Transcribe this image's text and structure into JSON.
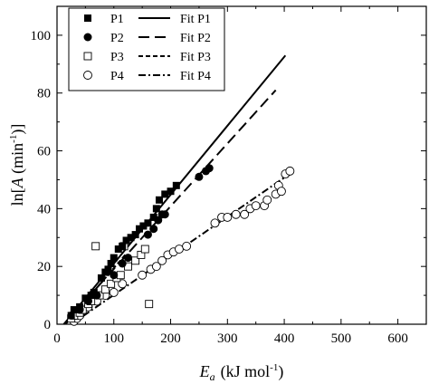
{
  "chart_data": {
    "type": "scatter",
    "xlabel": "E",
    "xlabel_sub": "a",
    "xlabel_unit": "(kJ mol",
    "xlabel_unit_sup": "-1",
    "xlabel_unit_end": ")",
    "ylabel_prefix": "ln[",
    "ylabel_var": "A",
    "ylabel_unit": " (min",
    "ylabel_unit_sup": "-1",
    "ylabel_unit_end": ")]",
    "xlim": [
      0,
      650
    ],
    "ylim": [
      0,
      110
    ],
    "xticks": [
      0,
      100,
      200,
      300,
      400,
      500,
      600
    ],
    "yticks": [
      0,
      20,
      40,
      60,
      80,
      100
    ],
    "grid": false,
    "legend": {
      "placement": "top-left",
      "entries": [
        {
          "name": "P1",
          "kind": "marker",
          "marker": "filled-square"
        },
        {
          "name": "Fit P1",
          "kind": "line",
          "dash": "solid"
        },
        {
          "name": "P2",
          "kind": "marker",
          "marker": "filled-circle"
        },
        {
          "name": "Fit P2",
          "kind": "line",
          "dash": "long-dash"
        },
        {
          "name": "P3",
          "kind": "marker",
          "marker": "open-square"
        },
        {
          "name": "Fit P3",
          "kind": "line",
          "dash": "short-dash"
        },
        {
          "name": "P4",
          "kind": "marker",
          "marker": "open-circle"
        },
        {
          "name": "Fit P4",
          "kind": "line",
          "dash": "dash-dot"
        }
      ]
    },
    "series": [
      {
        "name": "P1",
        "marker": "filled-square",
        "points": [
          [
            25,
            3
          ],
          [
            30,
            5
          ],
          [
            40,
            6
          ],
          [
            50,
            9
          ],
          [
            60,
            10
          ],
          [
            65,
            11
          ],
          [
            78,
            16
          ],
          [
            85,
            18
          ],
          [
            90,
            19
          ],
          [
            95,
            21
          ],
          [
            100,
            23
          ],
          [
            108,
            26
          ],
          [
            115,
            27
          ],
          [
            122,
            29
          ],
          [
            130,
            30
          ],
          [
            138,
            31
          ],
          [
            145,
            33
          ],
          [
            152,
            34
          ],
          [
            160,
            35
          ],
          [
            170,
            37
          ],
          [
            175,
            40
          ],
          [
            180,
            43
          ],
          [
            190,
            45
          ],
          [
            200,
            46
          ],
          [
            210,
            48
          ]
        ]
      },
      {
        "name": "P2",
        "marker": "filled-circle",
        "points": [
          [
            40,
            5
          ],
          [
            55,
            8
          ],
          [
            70,
            10
          ],
          [
            100,
            17
          ],
          [
            115,
            21
          ],
          [
            125,
            23
          ],
          [
            160,
            31
          ],
          [
            170,
            33
          ],
          [
            178,
            36
          ],
          [
            185,
            38
          ],
          [
            190,
            38
          ],
          [
            250,
            51
          ],
          [
            262,
            53
          ],
          [
            268,
            54
          ]
        ]
      },
      {
        "name": "P3",
        "marker": "open-square",
        "points": [
          [
            25,
            2
          ],
          [
            30,
            3
          ],
          [
            40,
            4
          ],
          [
            45,
            5
          ],
          [
            55,
            7
          ],
          [
            60,
            8
          ],
          [
            68,
            27
          ],
          [
            75,
            10
          ],
          [
            85,
            12
          ],
          [
            95,
            14
          ],
          [
            105,
            16
          ],
          [
            112,
            17
          ],
          [
            118,
            27
          ],
          [
            125,
            20
          ],
          [
            138,
            22
          ],
          [
            148,
            24
          ],
          [
            155,
            26
          ],
          [
            162,
            7
          ]
        ]
      },
      {
        "name": "P4",
        "marker": "open-circle",
        "points": [
          [
            30,
            1
          ],
          [
            35,
            2
          ],
          [
            40,
            3
          ],
          [
            55,
            6
          ],
          [
            70,
            8
          ],
          [
            85,
            10
          ],
          [
            100,
            11
          ],
          [
            115,
            14
          ],
          [
            150,
            17
          ],
          [
            165,
            19
          ],
          [
            175,
            20
          ],
          [
            185,
            22
          ],
          [
            195,
            24
          ],
          [
            205,
            25
          ],
          [
            215,
            26
          ],
          [
            228,
            27
          ],
          [
            278,
            35
          ],
          [
            290,
            37
          ],
          [
            300,
            37
          ],
          [
            315,
            38
          ],
          [
            330,
            38
          ],
          [
            340,
            40
          ],
          [
            350,
            41
          ],
          [
            365,
            41
          ],
          [
            370,
            43
          ],
          [
            385,
            45
          ],
          [
            390,
            48
          ],
          [
            395,
            46
          ],
          [
            402,
            52
          ],
          [
            410,
            53
          ]
        ]
      }
    ],
    "fits": [
      {
        "name": "Fit P1",
        "dash": "solid",
        "x": [
          12,
          402
        ],
        "y": [
          0,
          93
        ]
      },
      {
        "name": "Fit P2",
        "dash": "long-dash",
        "x": [
          12,
          385
        ],
        "y": [
          0,
          81
        ]
      },
      {
        "name": "Fit P3",
        "dash": "short-dash",
        "x": [
          15,
          120
        ],
        "y": [
          0,
          24
        ]
      },
      {
        "name": "Fit P4",
        "dash": "dash-dot",
        "x": [
          25,
          402
        ],
        "y": [
          0,
          51
        ]
      }
    ]
  }
}
